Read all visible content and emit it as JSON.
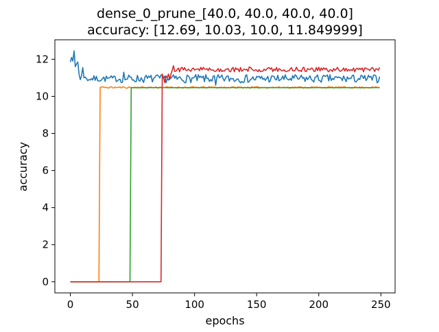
{
  "chart_data": {
    "type": "line",
    "title_line1": "dense_0_prune_[40.0, 40.0, 40.0, 40.0]",
    "title_line2": "accuracy: [12.69, 10.03, 10.0, 11.849999]",
    "xlabel": "epochs",
    "ylabel": "accuracy",
    "xlim": [
      -12.45,
      261.45
    ],
    "ylim": [
      -0.6,
      13.05
    ],
    "xticks": [
      0,
      50,
      100,
      150,
      200,
      250
    ],
    "yticks": [
      0,
      2,
      4,
      6,
      8,
      10,
      12
    ],
    "grid": false,
    "series": [
      {
        "color": "#1f77b4",
        "generator": "noisy",
        "start_epoch": 0,
        "end_epoch": 249,
        "seed": 7,
        "segments": [
          {
            "from": 0,
            "to": 6,
            "base": 11.95,
            "amp": 0.35
          },
          {
            "from": 7,
            "to": 40,
            "base": 10.95,
            "amp": 0.17
          },
          {
            "from": 41,
            "to": 249,
            "base": 10.95,
            "amp": 0.22
          }
        ],
        "fixed": [
          [
            0,
            11.85
          ],
          [
            1,
            12.1
          ],
          [
            2,
            11.9
          ],
          [
            3,
            12.45
          ],
          [
            4,
            11.6
          ],
          [
            5,
            11.75
          ],
          [
            6,
            11.85
          ],
          [
            7,
            11.2
          ],
          [
            8,
            10.9
          ],
          [
            9,
            11.1
          ],
          [
            10,
            11.55
          ],
          [
            11,
            11.0
          ],
          [
            43,
            11.3
          ],
          [
            117,
            10.6
          ]
        ]
      },
      {
        "color": "#ff7f0e",
        "generator": "steps",
        "start_epoch": 0,
        "end_epoch": 249,
        "seed": 11,
        "levels": [
          {
            "from": 0,
            "to": 23,
            "value": 0.0,
            "amp": 0
          },
          {
            "from": 24,
            "to": 249,
            "value": 10.48,
            "amp": 0.04
          }
        ]
      },
      {
        "color": "#2ca02c",
        "generator": "steps",
        "start_epoch": 0,
        "end_epoch": 249,
        "seed": 13,
        "levels": [
          {
            "from": 0,
            "to": 48,
            "value": 0.0,
            "amp": 0
          },
          {
            "from": 49,
            "to": 249,
            "value": 10.47,
            "amp": 0.005
          }
        ]
      },
      {
        "color": "#d62728",
        "generator": "noisy",
        "start_epoch": 0,
        "end_epoch": 249,
        "seed": 17,
        "segments": [
          {
            "from": 0,
            "to": 73,
            "base": 0.0,
            "amp": 0
          },
          {
            "from": 74,
            "to": 84,
            "base": 11.0,
            "amp": 0.2
          },
          {
            "from": 85,
            "to": 249,
            "base": 11.45,
            "amp": 0.13
          }
        ],
        "fixed": [
          [
            73,
            0.0
          ],
          [
            74,
            11.2
          ],
          [
            75,
            11.0
          ],
          [
            76,
            10.75
          ],
          [
            77,
            11.1
          ],
          [
            78,
            11.0
          ],
          [
            79,
            11.2
          ],
          [
            80,
            10.9
          ],
          [
            81,
            11.2
          ],
          [
            82,
            11.4
          ],
          [
            83,
            11.65
          ],
          [
            84,
            11.35
          ]
        ]
      }
    ]
  }
}
